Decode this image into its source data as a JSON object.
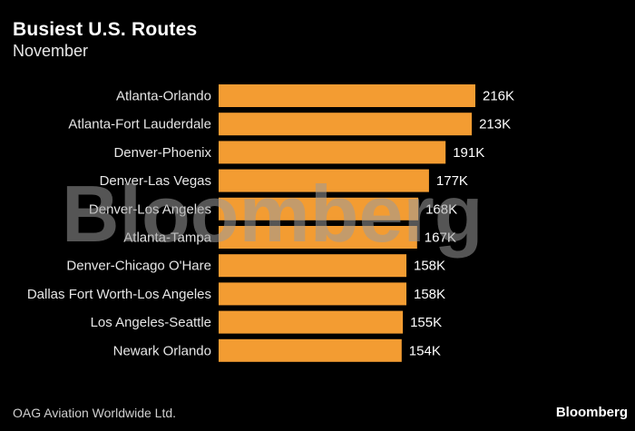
{
  "chart_data": {
    "type": "bar",
    "orientation": "horizontal",
    "title": "Busiest U.S. Routes",
    "subtitle": "November",
    "categories": [
      "Atlanta-Orlando",
      "Atlanta-Fort Lauderdale",
      "Denver-Phoenix",
      "Denver-Las Vegas",
      "Denver-Los Angeles",
      "Atlanta-Tampa",
      "Denver-Chicago O'Hare",
      "Dallas Fort Worth-Los Angeles",
      "Los Angeles-Seattle",
      "Newark Orlando"
    ],
    "values": [
      216,
      213,
      191,
      177,
      168,
      167,
      158,
      158,
      155,
      154
    ],
    "value_labels": [
      "216K",
      "213K",
      "191K",
      "177K",
      "168K",
      "167K",
      "158K",
      "158K",
      "155K",
      "154K"
    ],
    "bar_color": "#f39c32",
    "xlim": [
      0,
      216
    ],
    "grid": false,
    "legend": "none",
    "source": "OAG Aviation Worldwide Ltd.",
    "watermark": "Bloomberg",
    "logo": "Bloomberg"
  }
}
